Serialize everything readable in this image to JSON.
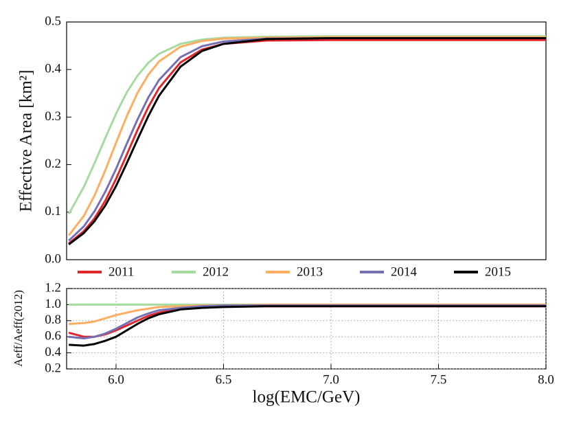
{
  "chart_data": [
    {
      "type": "line",
      "ylabel": "Effective Area [km²]",
      "x": [
        5.78,
        5.85,
        5.9,
        5.95,
        6.0,
        6.05,
        6.1,
        6.15,
        6.2,
        6.3,
        6.4,
        6.5,
        6.7,
        7.0,
        7.5,
        8.0
      ],
      "xlim": [
        5.77,
        8.0
      ],
      "ylim": [
        0,
        0.5
      ],
      "yticks": [
        {
          "value": 0,
          "label": "0.0"
        },
        0.1,
        0.2,
        0.3,
        0.4,
        0.5
      ],
      "grid": false,
      "series": [
        {
          "name": "2011",
          "color": "#e0262b",
          "values": [
            0.034,
            0.06,
            0.087,
            0.124,
            0.17,
            0.221,
            0.273,
            0.321,
            0.361,
            0.415,
            0.442,
            0.454,
            0.461,
            0.462,
            0.462,
            0.462
          ]
        },
        {
          "name": "2012",
          "color": "#a6dba0",
          "values": [
            0.096,
            0.153,
            0.203,
            0.256,
            0.307,
            0.352,
            0.387,
            0.414,
            0.433,
            0.454,
            0.463,
            0.467,
            0.469,
            0.47,
            0.47,
            0.47
          ]
        },
        {
          "name": "2013",
          "color": "#fdae61",
          "values": [
            0.051,
            0.092,
            0.135,
            0.188,
            0.246,
            0.302,
            0.351,
            0.389,
            0.417,
            0.448,
            0.46,
            0.465,
            0.467,
            0.468,
            0.468,
            0.468
          ]
        },
        {
          "name": "2014",
          "color": "#7570b3",
          "values": [
            0.04,
            0.07,
            0.102,
            0.143,
            0.191,
            0.244,
            0.295,
            0.341,
            0.378,
            0.426,
            0.449,
            0.459,
            0.465,
            0.466,
            0.466,
            0.466
          ]
        },
        {
          "name": "2015",
          "color": "#000000",
          "values": [
            0.032,
            0.056,
            0.081,
            0.114,
            0.155,
            0.203,
            0.253,
            0.302,
            0.345,
            0.406,
            0.439,
            0.454,
            0.464,
            0.466,
            0.466,
            0.466
          ]
        }
      ]
    },
    {
      "type": "line",
      "ylabel": "Aeff/Aeff(2012)",
      "xlabel": "log(EMC/GeV)",
      "x": [
        5.78,
        5.85,
        5.9,
        5.95,
        6.0,
        6.05,
        6.1,
        6.15,
        6.2,
        6.3,
        6.4,
        6.5,
        6.7,
        7.0,
        7.5,
        8.0
      ],
      "xlim": [
        5.77,
        8.0
      ],
      "xticks": [
        {
          "value": 6,
          "label": "6.0"
        },
        6.5,
        {
          "value": 7,
          "label": "7.0"
        },
        7.5,
        {
          "value": 8,
          "label": "8.0"
        }
      ],
      "ylim": [
        0.2,
        1.2
      ],
      "yticks": [
        0.2,
        0.4,
        0.6,
        0.8,
        {
          "value": 1,
          "label": "1.0"
        },
        1.2
      ],
      "grid": true,
      "series": [
        {
          "color": "#e0262b",
          "values": [
            0.65,
            0.6,
            0.6,
            0.63,
            0.68,
            0.74,
            0.8,
            0.86,
            0.9,
            0.95,
            0.97,
            0.98,
            0.98,
            0.98,
            0.98,
            0.98
          ]
        },
        {
          "color": "#a6dba0",
          "values": [
            1,
            1,
            1,
            1,
            1,
            1,
            1,
            1,
            1,
            1,
            1,
            1,
            1,
            1,
            1,
            1
          ]
        },
        {
          "color": "#fdae61",
          "values": [
            0.76,
            0.77,
            0.79,
            0.83,
            0.87,
            0.9,
            0.93,
            0.95,
            0.97,
            0.98,
            0.99,
            0.99,
            1,
            1,
            1,
            1
          ]
        },
        {
          "color": "#7570b3",
          "values": [
            0.6,
            0.58,
            0.6,
            0.64,
            0.7,
            0.77,
            0.84,
            0.89,
            0.93,
            0.96,
            0.98,
            0.99,
            0.99,
            0.99,
            0.99,
            0.99
          ]
        },
        {
          "color": "#000000",
          "values": [
            0.5,
            0.49,
            0.51,
            0.55,
            0.6,
            0.68,
            0.76,
            0.83,
            0.88,
            0.94,
            0.96,
            0.97,
            0.98,
            0.98,
            0.98,
            0.98
          ]
        }
      ]
    }
  ]
}
